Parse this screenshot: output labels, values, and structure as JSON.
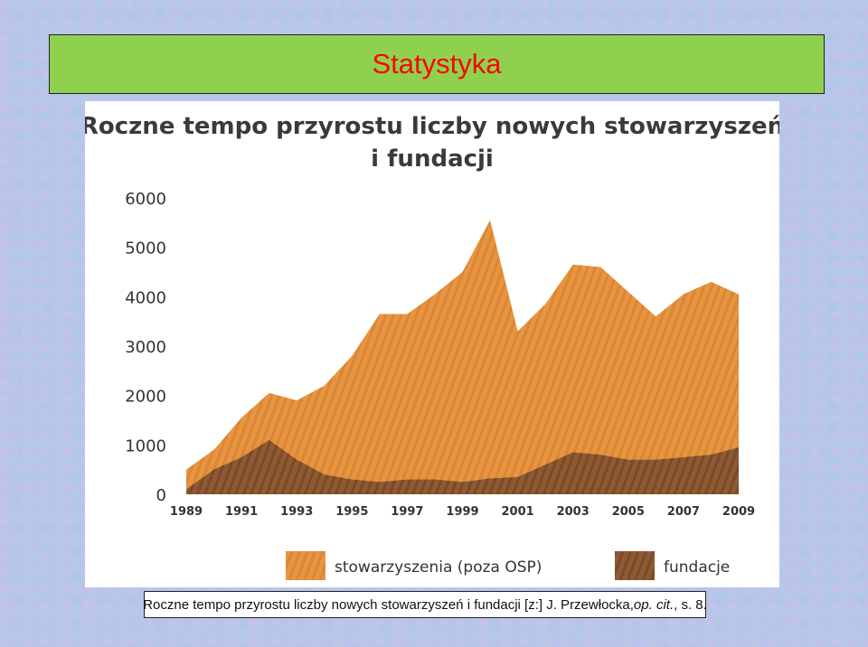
{
  "slide": {
    "title": "Statystyka",
    "caption": {
      "main": "Roczne tempo przyrostu liczby nowych stowarzyszeń i fundacji [z:] J. Przewłocka, ",
      "italic": "op. cit.",
      "tail": ", s. 8."
    }
  },
  "colors": {
    "title_background": "#8fd14f",
    "title_text": "#ff0000",
    "stowarzyszenia": "#e8953e",
    "fundacje": "#8d5a33"
  },
  "chart_data": {
    "type": "area",
    "title_line1": "Roczne tempo przyrostu liczby nowych stowarzyszeń",
    "title_line2": "i fundacji",
    "ylim": [
      0,
      6000
    ],
    "y_ticks": [
      0,
      1000,
      2000,
      3000,
      4000,
      5000,
      6000
    ],
    "x_ticks": [
      "1989",
      "1991",
      "1993",
      "1995",
      "1997",
      "1999",
      "2001",
      "2003",
      "2005",
      "2007",
      "2009"
    ],
    "x": [
      1989,
      1990,
      1991,
      1992,
      1993,
      1994,
      1995,
      1996,
      1997,
      1998,
      1999,
      2000,
      2001,
      2002,
      2003,
      2004,
      2005,
      2006,
      2007,
      2008,
      2009
    ],
    "stacked": true,
    "series": [
      {
        "name": "fundacje",
        "values": [
          100,
          500,
          750,
          1100,
          700,
          400,
          300,
          250,
          300,
          300,
          250,
          320,
          350,
          600,
          850,
          800,
          700,
          700,
          750,
          800,
          950
        ]
      },
      {
        "name": "stowarzyszenia (poza OSP)",
        "values": [
          500,
          900,
          1550,
          2050,
          1900,
          2200,
          2800,
          3650,
          3650,
          4050,
          4500,
          5550,
          3300,
          3850,
          4650,
          4600,
          4100,
          3600,
          4050,
          4300,
          4050
        ]
      }
    ],
    "legend": [
      "stowarzyszenia (poza OSP)",
      "fundacje"
    ],
    "legend_position": "bottom",
    "grid": false
  }
}
